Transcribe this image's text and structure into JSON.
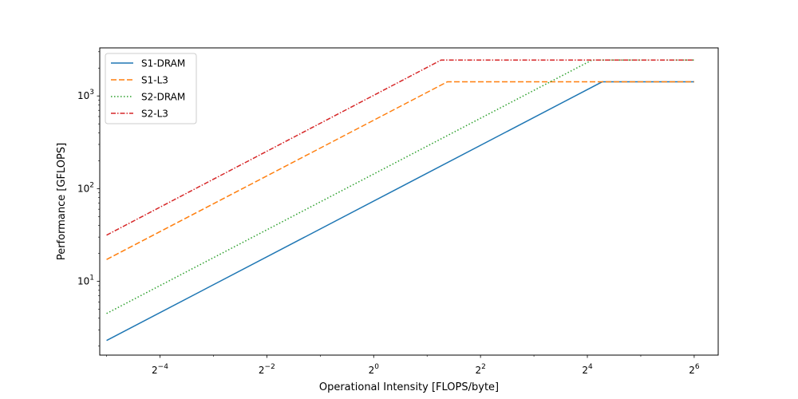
{
  "chart_data": {
    "type": "line",
    "title": "",
    "xlabel": "Operational Intensity [FLOPS/byte]",
    "ylabel": "Performance [GFLOPS]",
    "xscale": "log2",
    "yscale": "log10",
    "xlim": [
      0.0286,
      87.4
    ],
    "ylim": [
      1.6,
      3300
    ],
    "xticks": [
      {
        "value": 0.0625,
        "base": "2",
        "exp": "−4"
      },
      {
        "value": 0.25,
        "base": "2",
        "exp": "−2"
      },
      {
        "value": 1,
        "base": "2",
        "exp": "0"
      },
      {
        "value": 4,
        "base": "2",
        "exp": "2"
      },
      {
        "value": 16,
        "base": "2",
        "exp": "4"
      },
      {
        "value": 64,
        "base": "2",
        "exp": "6"
      }
    ],
    "yticks": [
      {
        "value": 10,
        "base": "10",
        "exp": "1"
      },
      {
        "value": 100,
        "base": "10",
        "exp": "2"
      },
      {
        "value": 1000,
        "base": "10",
        "exp": "3"
      }
    ],
    "grid": false,
    "legend_position": "top-left",
    "series": [
      {
        "name": "S1-DRAM",
        "color": "#1f77b4",
        "linestyle": "solid",
        "x": [
          0.03125,
          19.4,
          64
        ],
        "y": [
          2.3,
          1420,
          1420
        ]
      },
      {
        "name": "S1-L3",
        "color": "#ff7f0e",
        "linestyle": "dashed",
        "x": [
          0.03125,
          2.6,
          64
        ],
        "y": [
          17.2,
          1420,
          1420
        ]
      },
      {
        "name": "S2-DRAM",
        "color": "#2ca02c",
        "linestyle": "dotted",
        "x": [
          0.03125,
          17.0,
          64
        ],
        "y": [
          4.5,
          2440,
          2440
        ]
      },
      {
        "name": "S2-L3",
        "color": "#d62728",
        "linestyle": "dashdot",
        "x": [
          0.03125,
          2.4,
          64
        ],
        "y": [
          31.5,
          2440,
          2440
        ]
      }
    ]
  }
}
